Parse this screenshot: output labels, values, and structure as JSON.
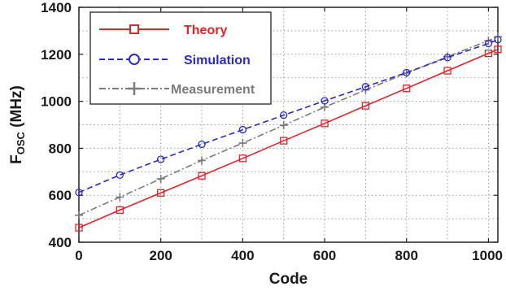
{
  "chart_data": {
    "type": "line",
    "xlabel": "Code",
    "ylabel": {
      "main": "F",
      "sub": "OSC",
      "unit": " (MHz)"
    },
    "xlim": [
      0,
      1023
    ],
    "ylim": [
      400,
      1400
    ],
    "xticks": [
      0,
      200,
      400,
      600,
      800,
      1000
    ],
    "yticks": [
      400,
      600,
      800,
      1000,
      1200,
      1400
    ],
    "x_minor_step": 100,
    "y_minor_step": 100,
    "grid": true,
    "legend_position": "top-left",
    "series": [
      {
        "name": "Theory",
        "color": "#e8212a",
        "line": "solid",
        "marker": "square",
        "x": [
          0,
          100,
          200,
          300,
          400,
          500,
          600,
          700,
          800,
          900,
          1000,
          1023
        ],
        "y": [
          462,
          537,
          610,
          683,
          757,
          832,
          906,
          981,
          1055,
          1130,
          1204,
          1221
        ]
      },
      {
        "name": "Simulation",
        "color": "#2a2ad4",
        "line": "dashed",
        "marker": "circle",
        "x": [
          0,
          100,
          200,
          300,
          400,
          500,
          600,
          700,
          800,
          900,
          1000,
          1023
        ],
        "y": [
          612,
          686,
          753,
          817,
          879,
          941,
          1002,
          1062,
          1122,
          1186,
          1246,
          1262
        ]
      },
      {
        "name": "Measurement",
        "color": "#7a7a7a",
        "line": "dashdot",
        "marker": "plus",
        "x": [
          0,
          100,
          200,
          300,
          400,
          500,
          600,
          700,
          800,
          900,
          1000,
          1023
        ],
        "y": [
          515,
          592,
          670,
          748,
          822,
          898,
          975,
          1048,
          1120,
          1190,
          1258,
          1275
        ]
      }
    ]
  }
}
